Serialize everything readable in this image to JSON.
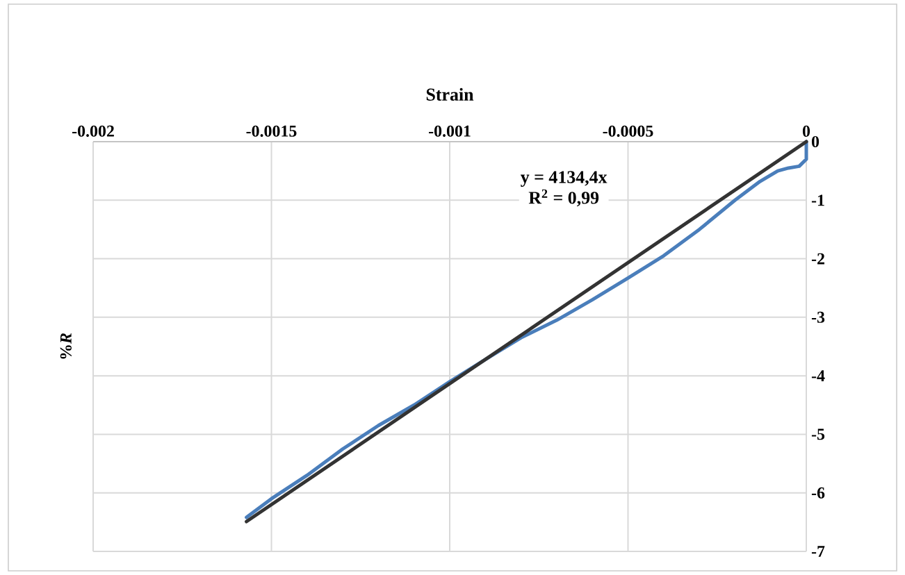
{
  "chart_data": {
    "type": "line",
    "title": "Strain",
    "ylabel": "%*R*",
    "xlim": [
      -0.002,
      0
    ],
    "xticks": [
      -0.002,
      -0.0015,
      -0.001,
      -0.0005,
      0
    ],
    "ylim": [
      -7,
      0
    ],
    "yticks": [
      0,
      -1,
      -2,
      -3,
      -4,
      -5,
      -6,
      -7
    ],
    "grid": true,
    "marker": "none",
    "line_style": "solid",
    "series": [
      {
        "color": "#4a7ebb",
        "x": [
          0,
          0,
          -2e-05,
          -5e-05,
          -8e-05,
          -0.00013,
          -0.0002,
          -0.0003,
          -0.0004,
          -0.0005,
          -0.0006,
          -0.0007,
          -0.0008,
          -0.0009,
          -0.001,
          -0.0011,
          -0.0012,
          -0.0013,
          -0.0014,
          -0.0015,
          -0.00157
        ],
        "values": [
          0,
          -0.3,
          -0.42,
          -0.45,
          -0.5,
          -0.68,
          -1.0,
          -1.5,
          -1.95,
          -2.33,
          -2.7,
          -3.05,
          -3.35,
          -3.72,
          -4.1,
          -4.5,
          -4.85,
          -5.25,
          -5.7,
          -6.1,
          -6.42
        ]
      },
      {
        "color": "#333333",
        "x": [
          -0.00157,
          0
        ],
        "values": [
          -6.49,
          0
        ]
      }
    ],
    "annotations": [
      "y = 4134,4x",
      "R$^{2}$ = 0,99"
    ]
  }
}
